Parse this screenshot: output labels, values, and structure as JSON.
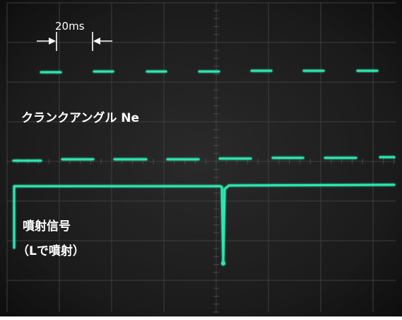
{
  "scale_annotation": {
    "label": "20ms"
  },
  "labels": {
    "crank_angle": "クランクアングル Ne",
    "injection_signal": "噴射信号",
    "injection_note": "（Lで噴射）"
  },
  "colors": {
    "trace": "#2ee6b0",
    "screen_bg": "#141414",
    "grid": "#3e3e3e",
    "label_text": "#ffffff"
  }
}
